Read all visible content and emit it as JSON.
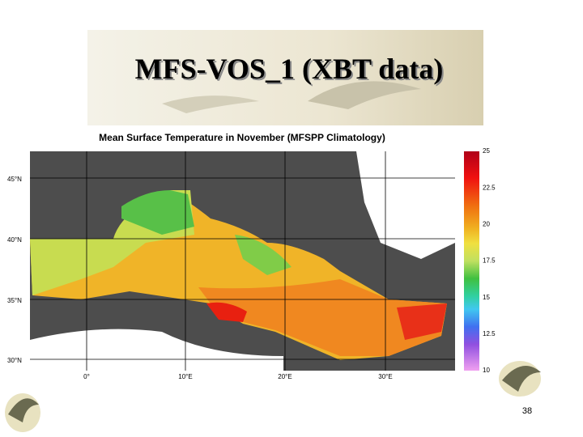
{
  "header": {
    "title": "MFS-VOS_1 (XBT data)"
  },
  "map": {
    "title": "Mean Surface Temperature in November (MFSPP Climatology)",
    "lat_labels": [
      "45°N",
      "40°N",
      "35°N",
      "30°N"
    ],
    "lon_labels": [
      "0°",
      "10°E",
      "20°E",
      "30°E"
    ],
    "colorbar_ticks": [
      25,
      22.5,
      20,
      17.5,
      15,
      12.5,
      10
    ]
  },
  "footer": {
    "page_number": "38"
  }
}
